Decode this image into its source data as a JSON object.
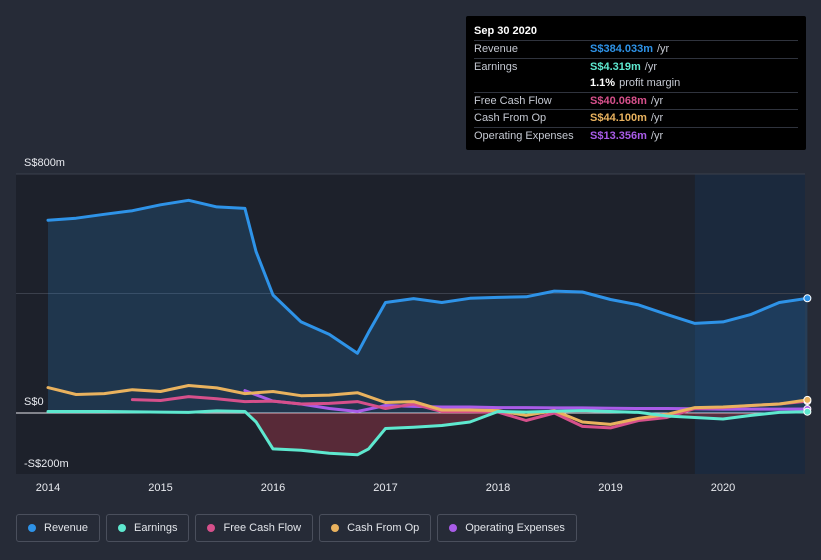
{
  "chart_data": {
    "type": "area",
    "y_unit_labels": {
      "top": "S$800m",
      "zero": "S$0",
      "bottom": "-S$200m"
    },
    "ylim": [
      -200,
      800
    ],
    "xlim": [
      2014.0,
      2020.75
    ],
    "x_tick_labels": [
      "2014",
      "2015",
      "2016",
      "2017",
      "2018",
      "2019",
      "2020"
    ],
    "x_ticks": [
      2014,
      2015,
      2016,
      2017,
      2018,
      2019,
      2020
    ],
    "forecast_shade_start": 2019.75,
    "series": [
      {
        "name": "Revenue",
        "color": "#2e93e8",
        "fill": "rgba(46,147,232,0.18)",
        "fill_area": true,
        "x": [
          2014.0,
          2014.25,
          2014.5,
          2014.75,
          2015.0,
          2015.25,
          2015.5,
          2015.75,
          2015.85,
          2016.0,
          2016.25,
          2016.5,
          2016.75,
          2016.85,
          2017.0,
          2017.25,
          2017.5,
          2017.75,
          2018.0,
          2018.25,
          2018.5,
          2018.75,
          2019.0,
          2019.25,
          2019.5,
          2019.75,
          2020.0,
          2020.25,
          2020.5,
          2020.75
        ],
        "values": [
          645,
          652,
          665,
          677,
          697,
          712,
          690,
          685,
          540,
          395,
          305,
          263,
          200,
          270,
          370,
          383,
          370,
          384,
          387,
          389,
          408,
          405,
          380,
          362,
          330,
          300,
          305,
          330,
          370,
          384
        ]
      },
      {
        "name": "Earnings",
        "color": "#5ee8cf",
        "fill": "rgba(200,60,80,0.35)",
        "fill_area": true,
        "x": [
          2014.0,
          2014.5,
          2015.0,
          2015.25,
          2015.5,
          2015.75,
          2015.85,
          2016.0,
          2016.25,
          2016.5,
          2016.75,
          2016.85,
          2017.0,
          2017.25,
          2017.5,
          2017.75,
          2018.0,
          2018.25,
          2018.5,
          2018.75,
          2019.0,
          2019.25,
          2019.5,
          2019.75,
          2020.0,
          2020.25,
          2020.5,
          2020.75
        ],
        "values": [
          5,
          5,
          3,
          2,
          7,
          5,
          -30,
          -120,
          -125,
          -135,
          -140,
          -120,
          -52,
          -48,
          -42,
          -30,
          5,
          3,
          6,
          8,
          5,
          2,
          -10,
          -15,
          -20,
          -8,
          2,
          4.3
        ]
      },
      {
        "name": "Free Cash Flow",
        "color": "#d6508b",
        "fill_area": false,
        "x": [
          2014.75,
          2015.0,
          2015.25,
          2015.5,
          2015.75,
          2016.0,
          2016.25,
          2016.5,
          2016.75,
          2017.0,
          2017.25,
          2017.5,
          2017.75,
          2018.0,
          2018.25,
          2018.5,
          2018.75,
          2019.0,
          2019.25,
          2019.5,
          2019.75,
          2020.0,
          2020.25,
          2020.5,
          2020.75
        ],
        "values": [
          45,
          42,
          55,
          48,
          38,
          40,
          30,
          32,
          38,
          15,
          30,
          5,
          5,
          3,
          -25,
          0,
          -45,
          -50,
          -25,
          -15,
          15,
          18,
          25,
          30,
          40
        ]
      },
      {
        "name": "Cash From Op",
        "color": "#e9b25e",
        "fill_area": false,
        "x": [
          2014.0,
          2014.25,
          2014.5,
          2014.75,
          2015.0,
          2015.25,
          2015.5,
          2015.75,
          2016.0,
          2016.25,
          2016.5,
          2016.75,
          2017.0,
          2017.25,
          2017.5,
          2017.75,
          2018.0,
          2018.25,
          2018.5,
          2018.75,
          2019.0,
          2019.25,
          2019.5,
          2019.75,
          2020.0,
          2020.25,
          2020.5,
          2020.75
        ],
        "values": [
          85,
          62,
          65,
          78,
          72,
          92,
          84,
          65,
          72,
          58,
          60,
          68,
          35,
          38,
          10,
          10,
          8,
          -8,
          8,
          -30,
          -38,
          -18,
          -5,
          18,
          20,
          25,
          30,
          44
        ]
      },
      {
        "name": "Operating Expenses",
        "color": "#a95ce8",
        "fill_area": false,
        "x": [
          2015.75,
          2016.0,
          2016.25,
          2016.5,
          2016.75,
          2017.0,
          2017.25,
          2017.5,
          2017.75,
          2018.0,
          2018.25,
          2018.5,
          2018.75,
          2019.0,
          2019.25,
          2019.5,
          2019.75,
          2020.0,
          2020.25,
          2020.5,
          2020.75
        ],
        "values": [
          75,
          40,
          30,
          15,
          5,
          25,
          22,
          20,
          20,
          18,
          18,
          17,
          17,
          16,
          15,
          15,
          14,
          13,
          13,
          13,
          13.4
        ]
      }
    ]
  },
  "tooltip": {
    "date": "Sep 30 2020",
    "rows": [
      {
        "label": "Revenue",
        "value": "S$384.033m",
        "unit": "/yr",
        "color": "#2e93e8"
      },
      {
        "label": "Earnings",
        "value": "S$4.319m",
        "unit": "/yr",
        "color": "#5ee8cf"
      },
      {
        "label": "",
        "value": "1.1%",
        "unit": "profit margin",
        "color": "#ffffff"
      },
      {
        "label": "Free Cash Flow",
        "value": "S$40.068m",
        "unit": "/yr",
        "color": "#d6508b"
      },
      {
        "label": "Cash From Op",
        "value": "S$44.100m",
        "unit": "/yr",
        "color": "#e9b25e"
      },
      {
        "label": "Operating Expenses",
        "value": "S$13.356m",
        "unit": "/yr",
        "color": "#a95ce8"
      }
    ]
  },
  "legend": [
    {
      "label": "Revenue",
      "color": "#2e93e8"
    },
    {
      "label": "Earnings",
      "color": "#5ee8cf"
    },
    {
      "label": "Free Cash Flow",
      "color": "#d6508b"
    },
    {
      "label": "Cash From Op",
      "color": "#e9b25e"
    },
    {
      "label": "Operating Expenses",
      "color": "#a95ce8"
    }
  ]
}
